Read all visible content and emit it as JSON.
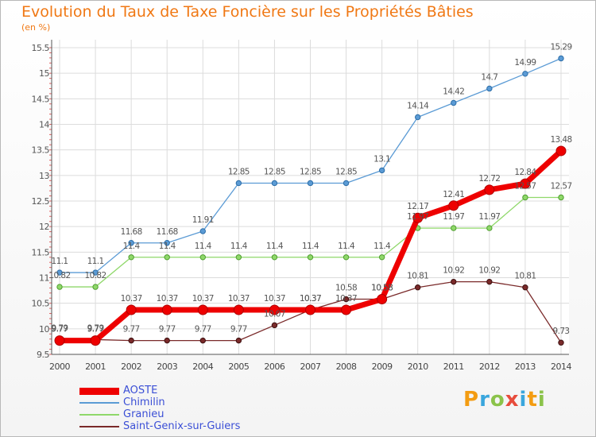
{
  "title": "Evolution du Taux de Taxe Foncière sur les Propriétés Bâties",
  "unit": "(en %)",
  "logo_text": "Proxiti",
  "chart_data": {
    "type": "line",
    "x": [
      "2000",
      "2001",
      "2002",
      "2003",
      "2004",
      "2005",
      "2006",
      "2007",
      "2008",
      "2009",
      "2010",
      "2011",
      "2012",
      "2013",
      "2014"
    ],
    "ylim": [
      9.5,
      15.5
    ],
    "yticks": [
      "9.5",
      "10",
      "10.5",
      "11",
      "11.5",
      "12",
      "12.5",
      "13",
      "13.5",
      "14",
      "14.5",
      "15",
      "15.5"
    ],
    "grid": true,
    "legend_position": "bottom-left",
    "series": [
      {
        "name": "AOSTE",
        "color": "#ee0000",
        "values": [
          9.77,
          9.77,
          10.37,
          10.37,
          10.37,
          10.37,
          10.37,
          10.37,
          10.37,
          10.58,
          12.17,
          12.41,
          12.72,
          12.84,
          13.48
        ],
        "labels": [
          "9.77",
          "9.77",
          "10.37",
          "10.37",
          "10.37",
          "10.37",
          "10.37",
          "10.37",
          "10.37",
          "10.58",
          "12.17",
          "12.41",
          "12.72",
          "12.84",
          "13.48"
        ]
      },
      {
        "name": "Chimilin",
        "color": "#5b9bd5",
        "values": [
          11.1,
          11.1,
          11.68,
          11.68,
          11.91,
          12.85,
          12.85,
          12.85,
          12.85,
          13.1,
          14.14,
          14.42,
          14.7,
          14.99,
          15.29
        ],
        "labels": [
          "11.1",
          "11.1",
          "11.68",
          "11.68",
          "11.91",
          "12.85",
          "12.85",
          "12.85",
          "12.85",
          "13.1",
          "14.14",
          "14.42",
          "14.7",
          "14.99",
          "15.29"
        ]
      },
      {
        "name": "Granieu",
        "color": "#8fd86a",
        "values": [
          10.82,
          10.82,
          11.4,
          11.4,
          11.4,
          11.4,
          11.4,
          11.4,
          11.4,
          11.4,
          11.97,
          11.97,
          11.97,
          12.57,
          12.57
        ],
        "labels": [
          "10.82",
          "10.82",
          "11.4",
          "11.4",
          "11.4",
          "11.4",
          "11.4",
          "11.4",
          "11.4",
          "11.4",
          "11.97",
          "11.97",
          "11.97",
          "12.57",
          "12.57"
        ]
      },
      {
        "name": "Saint-Genix-sur-Guiers",
        "color": "#7a2a2a",
        "values": [
          9.79,
          9.79,
          9.77,
          9.77,
          9.77,
          9.77,
          10.07,
          10.37,
          10.58,
          10.58,
          10.81,
          10.92,
          10.92,
          10.81,
          9.73
        ],
        "labels": [
          "9.79",
          "9.79",
          "9.77",
          "9.77",
          "9.77",
          "9.77",
          "10.07",
          "10.37",
          "10.58",
          "10.58",
          "10.81",
          "10.92",
          "10.92",
          "10.81",
          "9.73"
        ]
      }
    ]
  }
}
